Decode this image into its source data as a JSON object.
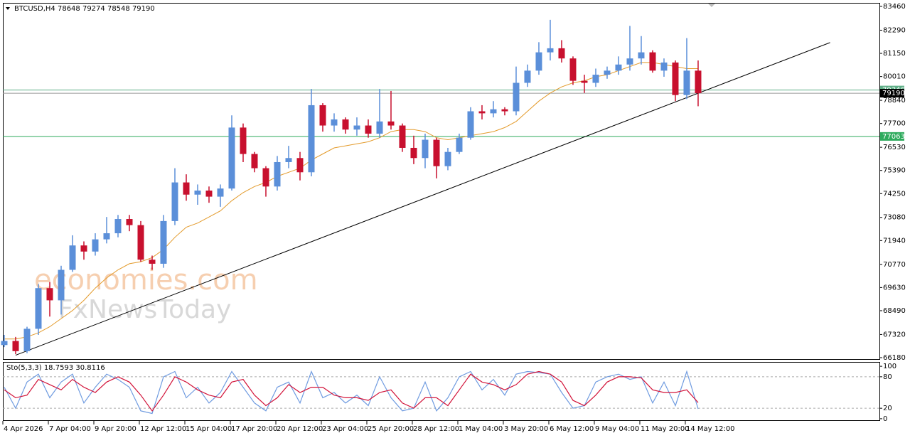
{
  "chart_data": [
    {
      "type": "candlestick",
      "title": "BTCUSD,H4  78648 79274 78548 79190",
      "annotations": [
        "economies.com",
        "FxNewsToday"
      ],
      "up_color": "#5b8fd9",
      "down_color": "#c8102e",
      "x": [
        0,
        1,
        2,
        3,
        4,
        5,
        6,
        7,
        8,
        9,
        10,
        11,
        12,
        13,
        14,
        15,
        16,
        17,
        18,
        19,
        20,
        21,
        22,
        23,
        24,
        25,
        26,
        27,
        28,
        29,
        30,
        31,
        32,
        33,
        34,
        35,
        36,
        37,
        38,
        39,
        40,
        41,
        42,
        43,
        44,
        45,
        46,
        47,
        48,
        49,
        50,
        51,
        52,
        53,
        54,
        55,
        56,
        57,
        58,
        59,
        60,
        61
      ],
      "open": [
        66800,
        67000,
        66500,
        67600,
        69600,
        69000,
        70500,
        71700,
        71400,
        72000,
        72300,
        73000,
        72700,
        71000,
        70800,
        72900,
        74800,
        74200,
        74400,
        74100,
        74500,
        77500,
        76200,
        75500,
        74600,
        75800,
        76000,
        75300,
        78600,
        77600,
        77900,
        77400,
        77600,
        77200,
        77800,
        77600,
        76500,
        76000,
        76900,
        75600,
        76300,
        77000,
        78300,
        78200,
        78400,
        78300,
        79700,
        80300,
        81200,
        81400,
        80900,
        79800,
        79700,
        80100,
        80300,
        80600,
        80900,
        81200,
        80300,
        80700,
        79100,
        80300
      ],
      "high": [
        67300,
        67200,
        67700,
        69800,
        69900,
        70700,
        72200,
        71900,
        72300,
        73100,
        73200,
        73200,
        72900,
        71200,
        73200,
        75500,
        75200,
        74700,
        74600,
        74700,
        78100,
        77700,
        76300,
        75600,
        76100,
        76600,
        76300,
        79400,
        78700,
        78200,
        78000,
        78000,
        77900,
        79400,
        79300,
        77700,
        77100,
        77200,
        77000,
        76500,
        77200,
        78500,
        78600,
        78800,
        78500,
        80500,
        80600,
        81700,
        82800,
        81800,
        81000,
        80100,
        80400,
        80500,
        81000,
        82500,
        82000,
        81300,
        80900,
        80800,
        81900,
        80800
      ],
      "low": [
        66700,
        66350,
        66400,
        67300,
        68200,
        68300,
        70400,
        71000,
        71200,
        71800,
        72100,
        72400,
        70900,
        70500,
        70600,
        72700,
        73900,
        73700,
        73800,
        73600,
        74400,
        75800,
        75300,
        74100,
        74400,
        75500,
        74900,
        75100,
        77300,
        77300,
        77200,
        77100,
        77000,
        77000,
        77400,
        76300,
        75700,
        75500,
        75000,
        75400,
        76200,
        76900,
        77900,
        78000,
        78100,
        78100,
        79500,
        80100,
        80800,
        80700,
        79600,
        79200,
        79500,
        79900,
        80100,
        80300,
        80600,
        80200,
        80000,
        78800,
        78900,
        78548
      ],
      "close": [
        67000,
        66500,
        67600,
        69600,
        69000,
        70500,
        71700,
        71400,
        72000,
        72300,
        73000,
        72700,
        71000,
        70800,
        72900,
        74800,
        74200,
        74400,
        74100,
        74500,
        77500,
        76200,
        75500,
        74600,
        75800,
        76000,
        75300,
        78600,
        77600,
        77900,
        77400,
        77600,
        77200,
        77800,
        77600,
        76500,
        76000,
        76900,
        75600,
        76300,
        77000,
        78300,
        78200,
        78400,
        78300,
        79700,
        80300,
        81200,
        81400,
        80900,
        79800,
        79700,
        80100,
        80300,
        80600,
        80900,
        81200,
        80300,
        80700,
        79100,
        80300,
        79190
      ],
      "ma": {
        "color": "#e39a2a",
        "values": [
          67100,
          67100,
          67200,
          67400,
          67700,
          68100,
          68500,
          69000,
          69600,
          70100,
          70500,
          70800,
          70900,
          71100,
          71500,
          72100,
          72600,
          72800,
          73100,
          73400,
          73900,
          74300,
          74600,
          74800,
          75100,
          75300,
          75500,
          75900,
          76200,
          76500,
          76600,
          76700,
          76800,
          77000,
          77300,
          77400,
          77400,
          77300,
          77000,
          76900,
          77000,
          77100,
          77200,
          77300,
          77500,
          77800,
          78300,
          78800,
          79200,
          79500,
          79700,
          79800,
          80000,
          80100,
          80300,
          80500,
          80700,
          80700,
          80600,
          80500,
          80400,
          80400
        ]
      },
      "trendline": {
        "color": "#000000",
        "x": [
          1,
          72.6
        ],
        "y": [
          66300,
          81680
        ]
      },
      "hlines": [
        {
          "value": 79346,
          "color": "#5fae87"
        },
        {
          "value": 79190,
          "color": "#9a9a9a"
        },
        {
          "value": 77063,
          "color": "#2eaa5c"
        }
      ],
      "xlim": [
        -0.125,
        76.94
      ],
      "ylim": [
        66110,
        83635
      ],
      "yticks": [
        66180,
        67320,
        68490,
        69630,
        70770,
        71940,
        73080,
        74250,
        75390,
        76530,
        77700,
        78840,
        80010,
        81150,
        82290,
        83460
      ],
      "xticks": [
        {
          "value": -0.125,
          "label": "4 Apr 2026"
        },
        {
          "value": 3.875,
          "label": "7 Apr 04:00"
        },
        {
          "value": 7.875,
          "label": "9 Apr 20:00"
        },
        {
          "value": 11.875,
          "label": "12 Apr 12:00"
        },
        {
          "value": 15.875,
          "label": "15 Apr 04:00"
        },
        {
          "value": 19.875,
          "label": "17 Apr 20:00"
        },
        {
          "value": 23.875,
          "label": "20 Apr 12:00"
        },
        {
          "value": 27.875,
          "label": "23 Apr 04:00"
        },
        {
          "value": 31.875,
          "label": "25 Apr 20:00"
        },
        {
          "value": 35.875,
          "label": "28 Apr 12:00"
        },
        {
          "value": 39.875,
          "label": "1 May 04:00"
        },
        {
          "value": 43.875,
          "label": "3 May 20:00"
        },
        {
          "value": 47.875,
          "label": "6 May 12:00"
        },
        {
          "value": 51.875,
          "label": "9 May 04:00"
        },
        {
          "value": 55.875,
          "label": "11 May 20:00"
        },
        {
          "value": 59.875,
          "label": "14 May 12:00"
        }
      ]
    },
    {
      "type": "line",
      "title": "Sto(5,3,3) 18.7593 30.8116",
      "x": [
        0,
        1,
        2,
        3,
        4,
        5,
        6,
        7,
        8,
        9,
        10,
        11,
        12,
        13,
        14,
        15,
        16,
        17,
        18,
        19,
        20,
        21,
        22,
        23,
        24,
        25,
        26,
        27,
        28,
        29,
        30,
        31,
        32,
        33,
        34,
        35,
        36,
        37,
        38,
        39,
        40,
        41,
        42,
        43,
        44,
        45,
        46,
        47,
        48,
        49,
        50,
        51,
        52,
        53,
        54,
        55,
        56,
        57,
        58,
        59,
        60,
        61
      ],
      "series": [
        {
          "color": "#6f9be0",
          "values": [
            60,
            20,
            70,
            85,
            40,
            70,
            85,
            30,
            60,
            85,
            75,
            60,
            15,
            10,
            80,
            90,
            40,
            60,
            30,
            50,
            90,
            60,
            30,
            15,
            60,
            70,
            30,
            90,
            40,
            50,
            30,
            45,
            25,
            80,
            40,
            15,
            20,
            70,
            15,
            40,
            80,
            90,
            55,
            75,
            45,
            85,
            90,
            88,
            85,
            50,
            20,
            25,
            70,
            80,
            85,
            75,
            80,
            30,
            70,
            25,
            90,
            18.7593
          ]
        },
        {
          "color": "#d2143a",
          "values": [
            55,
            40,
            45,
            75,
            65,
            55,
            75,
            60,
            50,
            70,
            80,
            70,
            45,
            15,
            45,
            80,
            70,
            55,
            45,
            40,
            70,
            75,
            45,
            25,
            40,
            65,
            50,
            60,
            60,
            45,
            40,
            40,
            35,
            50,
            55,
            30,
            20,
            40,
            40,
            25,
            55,
            85,
            70,
            65,
            55,
            65,
            85,
            90,
            85,
            70,
            35,
            25,
            45,
            70,
            80,
            80,
            78,
            55,
            50,
            50,
            55,
            30.8116
          ]
        }
      ],
      "levels": [
        20,
        80
      ],
      "xlim": [
        -0.125,
        76.94
      ],
      "ylim": [
        -4.2,
        108.3
      ],
      "yticks": [
        0,
        20,
        80,
        100
      ]
    }
  ]
}
